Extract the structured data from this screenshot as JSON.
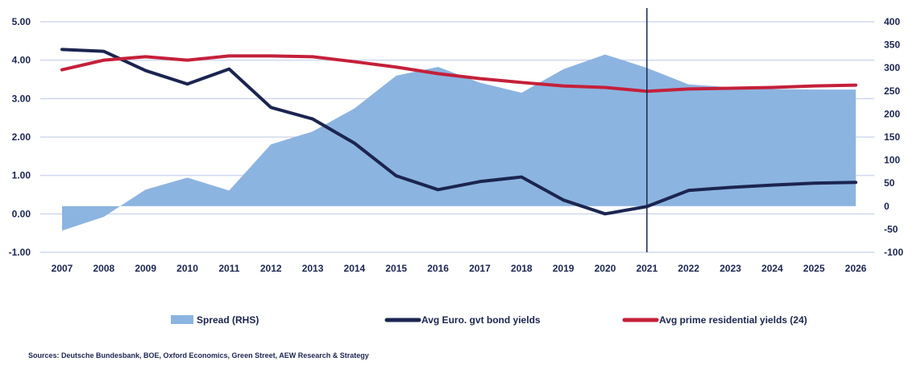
{
  "chart_data": {
    "type": "line",
    "categories": [
      "2007",
      "2008",
      "2009",
      "2010",
      "2011",
      "2012",
      "2013",
      "2014",
      "2015",
      "2016",
      "2017",
      "2018",
      "2019",
      "2020",
      "2021",
      "2022",
      "2023",
      "2024",
      "2025",
      "2026"
    ],
    "left_axis": {
      "ylim": [
        -1,
        5
      ],
      "ticks": [
        "5.00",
        "4.00",
        "3.00",
        "2.00",
        "1.00",
        "0.00",
        "-1.00"
      ],
      "tick_values": [
        5,
        4,
        3,
        2,
        1,
        0,
        -1
      ]
    },
    "right_axis": {
      "ylim": [
        -100,
        400
      ],
      "ticks": [
        "400",
        "350",
        "300",
        "250",
        "200",
        "150",
        "100",
        "50",
        "0",
        "-50",
        "-100"
      ],
      "tick_values": [
        400,
        350,
        300,
        250,
        200,
        150,
        100,
        50,
        0,
        -50,
        -100
      ]
    },
    "grid": true,
    "legend_position": "bottom",
    "vertical_marker": "2021",
    "series": [
      {
        "name": "Spread (RHS)",
        "type": "area",
        "axis": "right",
        "color": "#8cb4e0",
        "values": [
          -53,
          -23,
          36,
          62,
          34,
          134,
          162,
          212,
          283,
          302,
          268,
          246,
          297,
          329,
          300,
          264,
          258,
          254,
          253,
          253
        ]
      },
      {
        "name": "Avg Euro. gvt bond yields",
        "type": "line",
        "axis": "left",
        "color": "#1b2550",
        "values": [
          4.28,
          4.23,
          3.73,
          3.38,
          3.77,
          2.77,
          2.47,
          1.84,
          0.99,
          0.63,
          0.84,
          0.96,
          0.36,
          0.0,
          0.19,
          0.61,
          0.69,
          0.75,
          0.8,
          0.82
        ]
      },
      {
        "name": "Avg prime residential yields (24)",
        "type": "line",
        "axis": "left",
        "color": "#c4203a",
        "values": [
          3.75,
          4.0,
          4.09,
          4.0,
          4.11,
          4.11,
          4.09,
          3.96,
          3.82,
          3.65,
          3.52,
          3.42,
          3.33,
          3.29,
          3.19,
          3.25,
          3.27,
          3.29,
          3.33,
          3.35
        ]
      }
    ]
  },
  "source": "Sources: Deutsche Bundesbank, BOE, Oxford Economics, Green Street, AEW Research & Strategy",
  "colors": {
    "grid": "#d0d8ee",
    "text": "#1b2550"
  }
}
